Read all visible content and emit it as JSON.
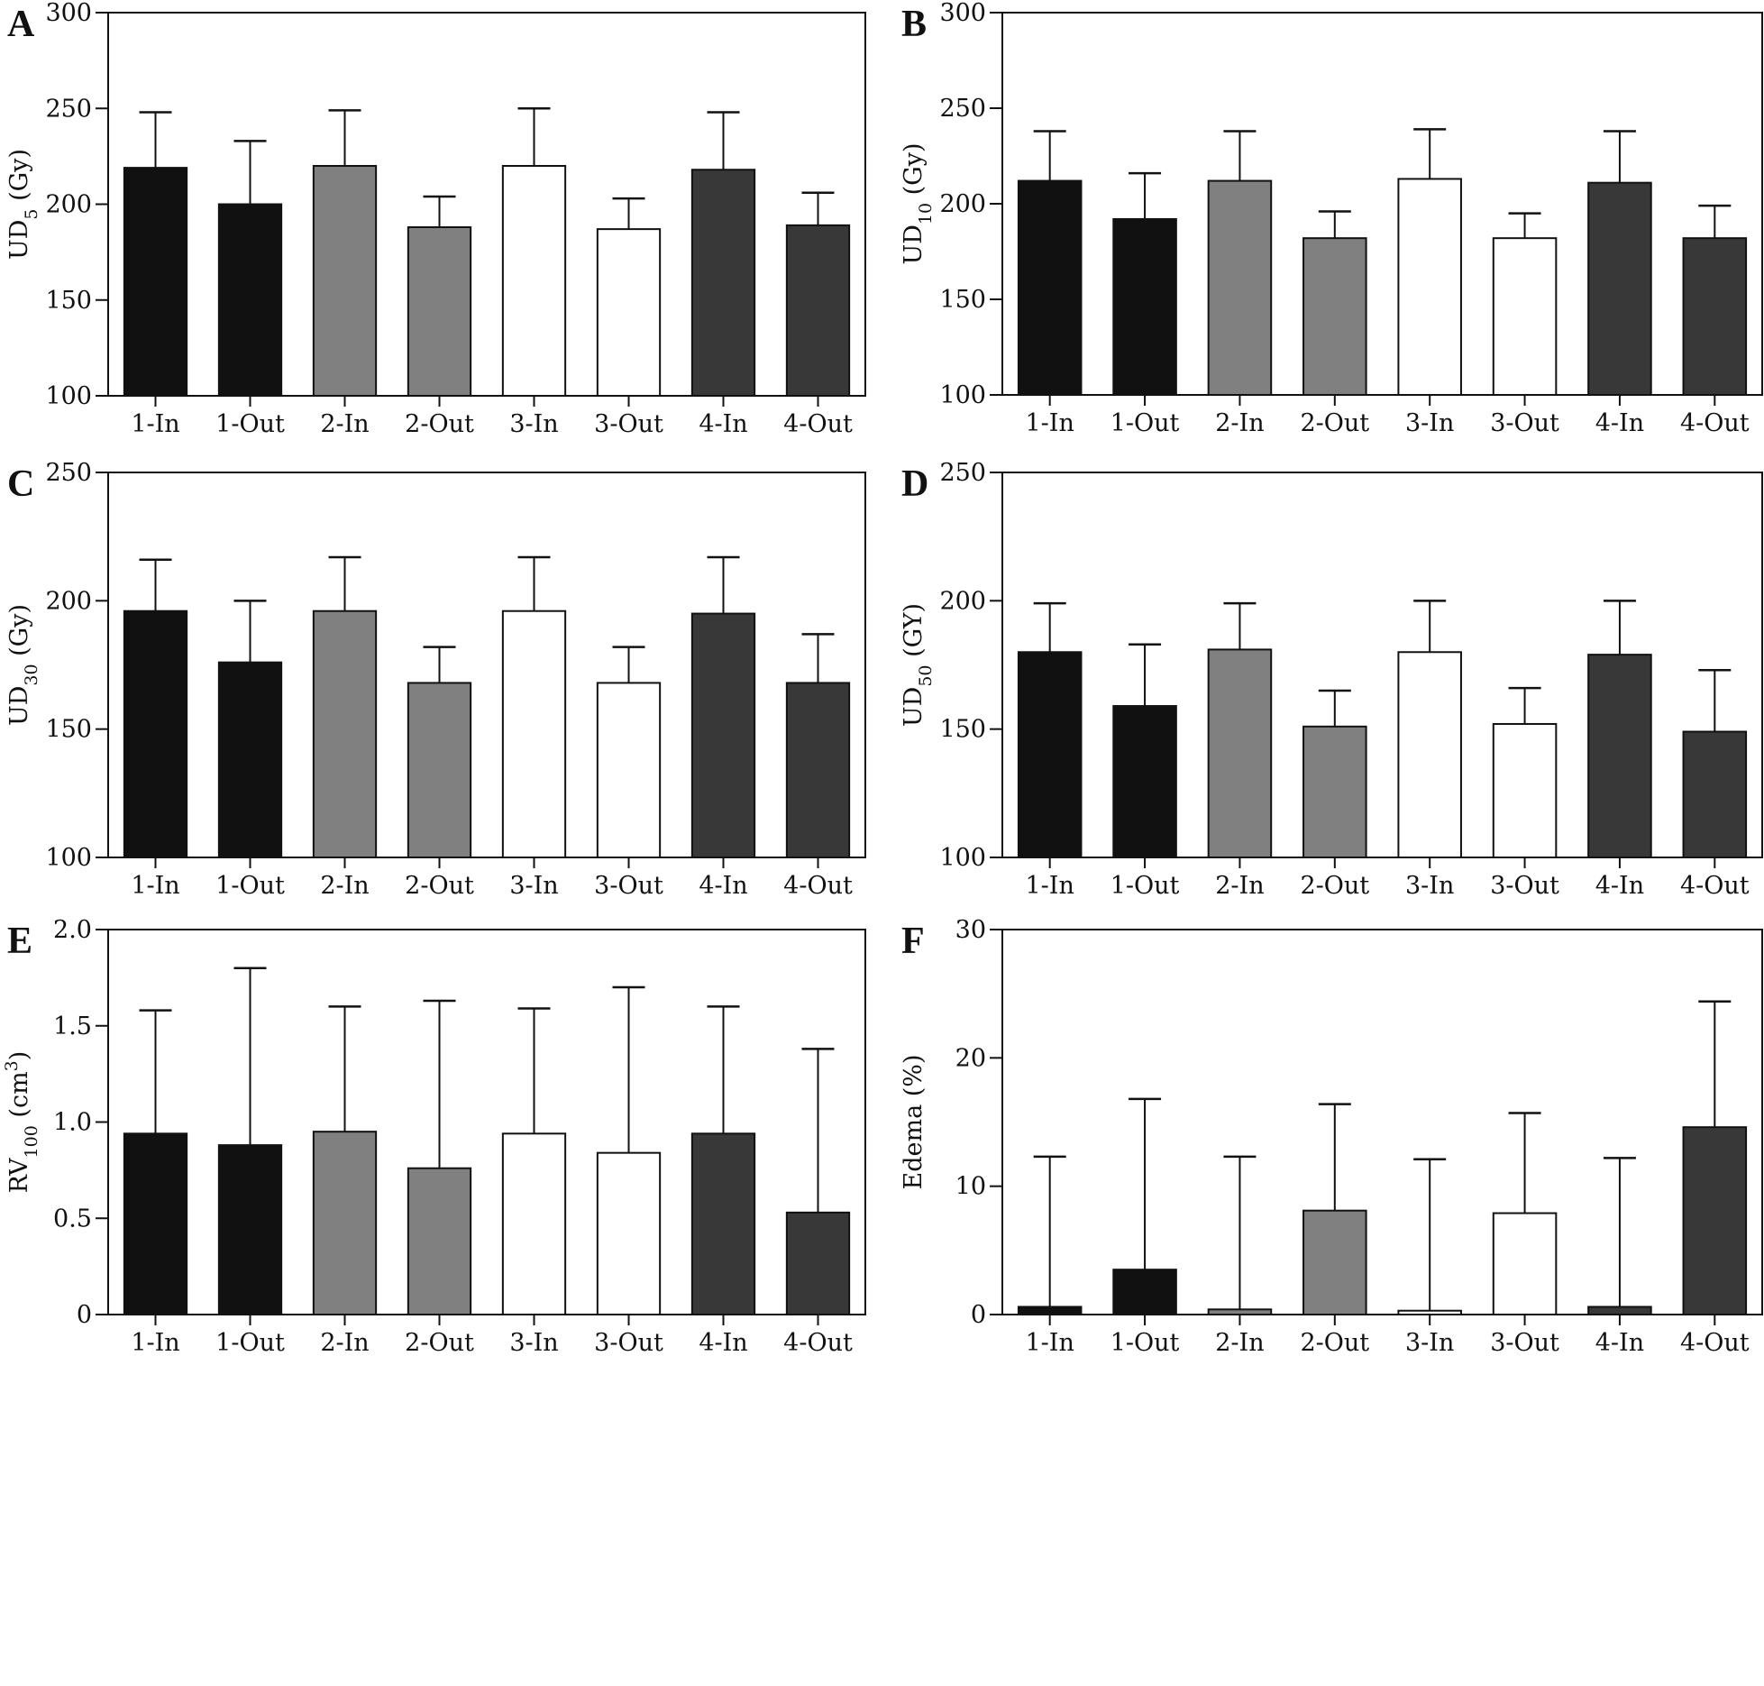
{
  "figure": {
    "categories": [
      "1-In",
      "1-Out",
      "2-In",
      "2-Out",
      "3-In",
      "3-Out",
      "4-In",
      "4-Out"
    ],
    "colors": [
      "#111111",
      "#111111",
      "#808080",
      "#808080",
      "#ffffff",
      "#ffffff",
      "#383838",
      "#383838"
    ],
    "edge_color": "#111111"
  },
  "chart_data": [
    {
      "panel": "A",
      "type": "bar",
      "title": "",
      "ylabel_main": "UD",
      "ylabel_sub": "5",
      "ylabel_sup": "",
      "ylabel_unit": " (Gy)",
      "xlabel": "",
      "ylim": [
        100,
        300
      ],
      "yticks": [
        100,
        150,
        200,
        250,
        300
      ],
      "ytick_labels": [
        "100",
        "150",
        "200",
        "250",
        "300"
      ],
      "categories": [
        "1-In",
        "1-Out",
        "2-In",
        "2-Out",
        "3-In",
        "3-Out",
        "4-In",
        "4-Out"
      ],
      "values": [
        219,
        200,
        220,
        188,
        220,
        187,
        218,
        189
      ],
      "error_upper": [
        248,
        233,
        249,
        204,
        250,
        203,
        248,
        206
      ]
    },
    {
      "panel": "B",
      "type": "bar",
      "title": "",
      "ylabel_main": "UD",
      "ylabel_sub": "10",
      "ylabel_sup": "",
      "ylabel_unit": " (Gy)",
      "xlabel": "",
      "ylim": [
        100,
        300
      ],
      "yticks": [
        100,
        150,
        200,
        250,
        300
      ],
      "ytick_labels": [
        "100",
        "150",
        "200",
        "250",
        "300"
      ],
      "categories": [
        "1-In",
        "1-Out",
        "2-In",
        "2-Out",
        "3-In",
        "3-Out",
        "4-In",
        "4-Out"
      ],
      "values": [
        212,
        192,
        212,
        182,
        213,
        182,
        211,
        182
      ],
      "error_upper": [
        238,
        216,
        238,
        196,
        239,
        195,
        238,
        199
      ]
    },
    {
      "panel": "C",
      "type": "bar",
      "title": "",
      "ylabel_main": "UD",
      "ylabel_sub": "30",
      "ylabel_sup": "",
      "ylabel_unit": " (Gy)",
      "xlabel": "",
      "ylim": [
        100,
        250
      ],
      "yticks": [
        100,
        150,
        200,
        250
      ],
      "ytick_labels": [
        "100",
        "150",
        "200",
        "250"
      ],
      "categories": [
        "1-In",
        "1-Out",
        "2-In",
        "2-Out",
        "3-In",
        "3-Out",
        "4-In",
        "4-Out"
      ],
      "values": [
        196,
        176,
        196,
        168,
        196,
        168,
        195,
        168
      ],
      "error_upper": [
        216,
        200,
        217,
        182,
        217,
        182,
        217,
        187
      ]
    },
    {
      "panel": "D",
      "type": "bar",
      "title": "",
      "ylabel_main": "UD",
      "ylabel_sub": "50",
      "ylabel_sup": "",
      "ylabel_unit": " (GY)",
      "xlabel": "",
      "ylim": [
        100,
        250
      ],
      "yticks": [
        100,
        150,
        200,
        250
      ],
      "ytick_labels": [
        "100",
        "150",
        "200",
        "250"
      ],
      "categories": [
        "1-In",
        "1-Out",
        "2-In",
        "2-Out",
        "3-In",
        "3-Out",
        "4-In",
        "4-Out"
      ],
      "values": [
        180,
        159,
        181,
        151,
        180,
        152,
        179,
        149
      ],
      "error_upper": [
        199,
        183,
        199,
        165,
        200,
        166,
        200,
        173
      ]
    },
    {
      "panel": "E",
      "type": "bar",
      "title": "",
      "ylabel_main": "RV",
      "ylabel_sub": "100",
      "ylabel_sup": "3",
      "ylabel_unit": " (cm",
      "ylabel_close": ")",
      "xlabel": "",
      "ylim": [
        0,
        2.0
      ],
      "yticks": [
        0,
        0.5,
        1.0,
        1.5,
        2.0
      ],
      "ytick_labels": [
        "0",
        "0.5",
        "1.0",
        "1.5",
        "2.0"
      ],
      "categories": [
        "1-In",
        "1-Out",
        "2-In",
        "2-Out",
        "3-In",
        "3-Out",
        "4-In",
        "4-Out"
      ],
      "values": [
        0.94,
        0.88,
        0.95,
        0.76,
        0.94,
        0.84,
        0.94,
        0.53
      ],
      "error_upper": [
        1.58,
        1.8,
        1.6,
        1.63,
        1.59,
        1.7,
        1.6,
        1.38
      ]
    },
    {
      "panel": "F",
      "type": "bar",
      "title": "",
      "ylabel_main": "Edema (%)",
      "ylabel_sub": "",
      "ylabel_sup": "",
      "ylabel_unit": "",
      "xlabel": "",
      "ylim": [
        0,
        30
      ],
      "yticks": [
        0,
        10,
        20,
        30
      ],
      "ytick_labels": [
        "0",
        "10",
        "20",
        "30"
      ],
      "categories": [
        "1-In",
        "1-Out",
        "2-In",
        "2-Out",
        "3-In",
        "3-Out",
        "4-In",
        "4-Out"
      ],
      "values": [
        0.6,
        3.5,
        0.4,
        8.1,
        0.3,
        7.9,
        0.6,
        14.6
      ],
      "error_upper": [
        12.3,
        16.8,
        12.3,
        16.4,
        12.1,
        15.7,
        12.2,
        24.4
      ]
    }
  ]
}
